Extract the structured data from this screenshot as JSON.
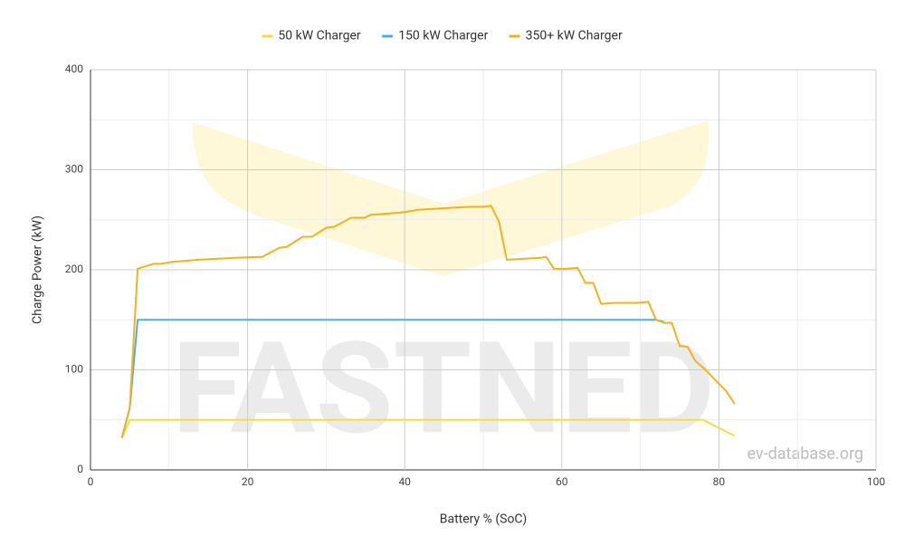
{
  "chart_data": {
    "type": "line",
    "x_label": "Battery % (SoC)",
    "y_label": "Charge Power (kW)",
    "watermark": "FASTNED",
    "source": "ev-database.org",
    "xlim": [
      0,
      100
    ],
    "xticks": [
      0,
      20,
      40,
      60,
      80,
      100
    ],
    "xgrid_minor": [
      10,
      30,
      50,
      70,
      90
    ],
    "ylim": [
      0,
      400
    ],
    "yticks": [
      0,
      100,
      200,
      300,
      400
    ],
    "ygrid_minor": [
      50,
      150,
      250,
      350
    ],
    "grid": true,
    "legend": "top",
    "series": [
      {
        "name": "50 kW Charger",
        "color": "#f7dc45",
        "x": [
          4,
          5,
          78,
          80,
          82
        ],
        "values": [
          32,
          50,
          50,
          42,
          34
        ]
      },
      {
        "name": "150 kW Charger",
        "color": "#4aafe0",
        "x": [
          4,
          5,
          6,
          72,
          73
        ],
        "values": [
          32,
          62,
          150,
          150,
          148
        ]
      },
      {
        "name": "350+ kW Charger",
        "color": "#f2b21b",
        "x": [
          4,
          5,
          6,
          8,
          9,
          10.4,
          13.8,
          18.4,
          21.9,
          24,
          25,
          27,
          28.2,
          30,
          31,
          33.2,
          34.9,
          35.7,
          39.2,
          40.3,
          41.7,
          43.8,
          46,
          48.4,
          50,
          51,
          52,
          53,
          55.3,
          57.4,
          58,
          59,
          60.5,
          62,
          63,
          64,
          65,
          66.8,
          69.7,
          71,
          72,
          73,
          74,
          75,
          76,
          77,
          78.3,
          79.5,
          80.9,
          82
        ],
        "values": [
          32,
          62,
          201,
          206,
          206,
          208,
          210,
          212,
          213,
          222,
          223,
          233,
          233,
          242,
          243,
          252,
          252,
          255,
          257,
          258,
          260,
          261,
          262,
          263,
          263,
          264,
          248,
          210,
          211,
          212,
          213,
          201,
          201,
          202,
          187,
          187,
          166,
          167,
          167,
          168,
          150,
          147,
          147,
          124,
          123,
          109,
          100,
          90,
          79,
          66
        ]
      }
    ]
  }
}
